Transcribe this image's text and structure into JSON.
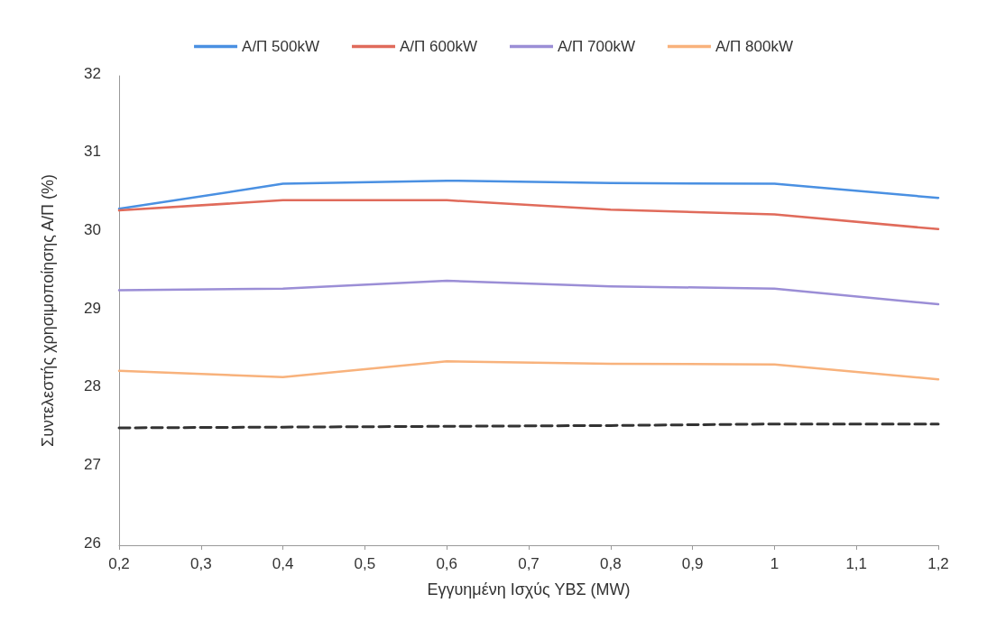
{
  "chart_data": {
    "type": "line",
    "xlabel": "Εγγυημένη Ισχύς ΥΒΣ (MW)",
    "ylabel": "Συντελεστής χρησιμοποίησης Α/Π (%)",
    "x": [
      0.2,
      0.4,
      0.6,
      0.8,
      1,
      1.2
    ],
    "series": [
      {
        "name": "Α/Π 500kW",
        "color": "#4a90e2",
        "values": [
          30.3,
          30.62,
          30.66,
          30.63,
          30.62,
          30.44
        ]
      },
      {
        "name": "Α/Π 600kW",
        "color": "#e06b5b",
        "values": [
          30.28,
          30.41,
          30.41,
          30.29,
          30.23,
          30.04
        ]
      },
      {
        "name": "Α/Π 700kW",
        "color": "#9b8ed6",
        "values": [
          29.26,
          29.28,
          29.38,
          29.31,
          29.28,
          29.08
        ]
      },
      {
        "name": "Α/Π 800kW",
        "color": "#f8b27c",
        "values": [
          28.23,
          28.15,
          28.35,
          28.32,
          28.31,
          28.12
        ]
      },
      {
        "color": "#333333",
        "line_style": "dashed",
        "values": [
          27.5,
          27.51,
          27.52,
          27.53,
          27.55,
          27.55
        ]
      }
    ],
    "xlim": [
      0.2,
      1.2
    ],
    "xticks": [
      {
        "value": 0.2,
        "label": "0,2"
      },
      {
        "value": 0.3,
        "label": "0,3"
      },
      {
        "value": 0.4,
        "label": "0,4"
      },
      {
        "value": 0.5,
        "label": "0,5"
      },
      {
        "value": 0.6,
        "label": "0,6"
      },
      {
        "value": 0.7,
        "label": "0,7"
      },
      {
        "value": 0.8,
        "label": "0,8"
      },
      {
        "value": 0.9,
        "label": "0,9"
      },
      1,
      {
        "value": 1.1,
        "label": "1,1"
      },
      {
        "value": 1.2,
        "label": "1,2"
      }
    ],
    "ylim": [
      26,
      32
    ],
    "yticks": [
      26,
      27,
      28,
      29,
      30,
      31,
      32
    ],
    "grid": false,
    "legend": "top",
    "marker": "none",
    "line_style": "solid"
  }
}
